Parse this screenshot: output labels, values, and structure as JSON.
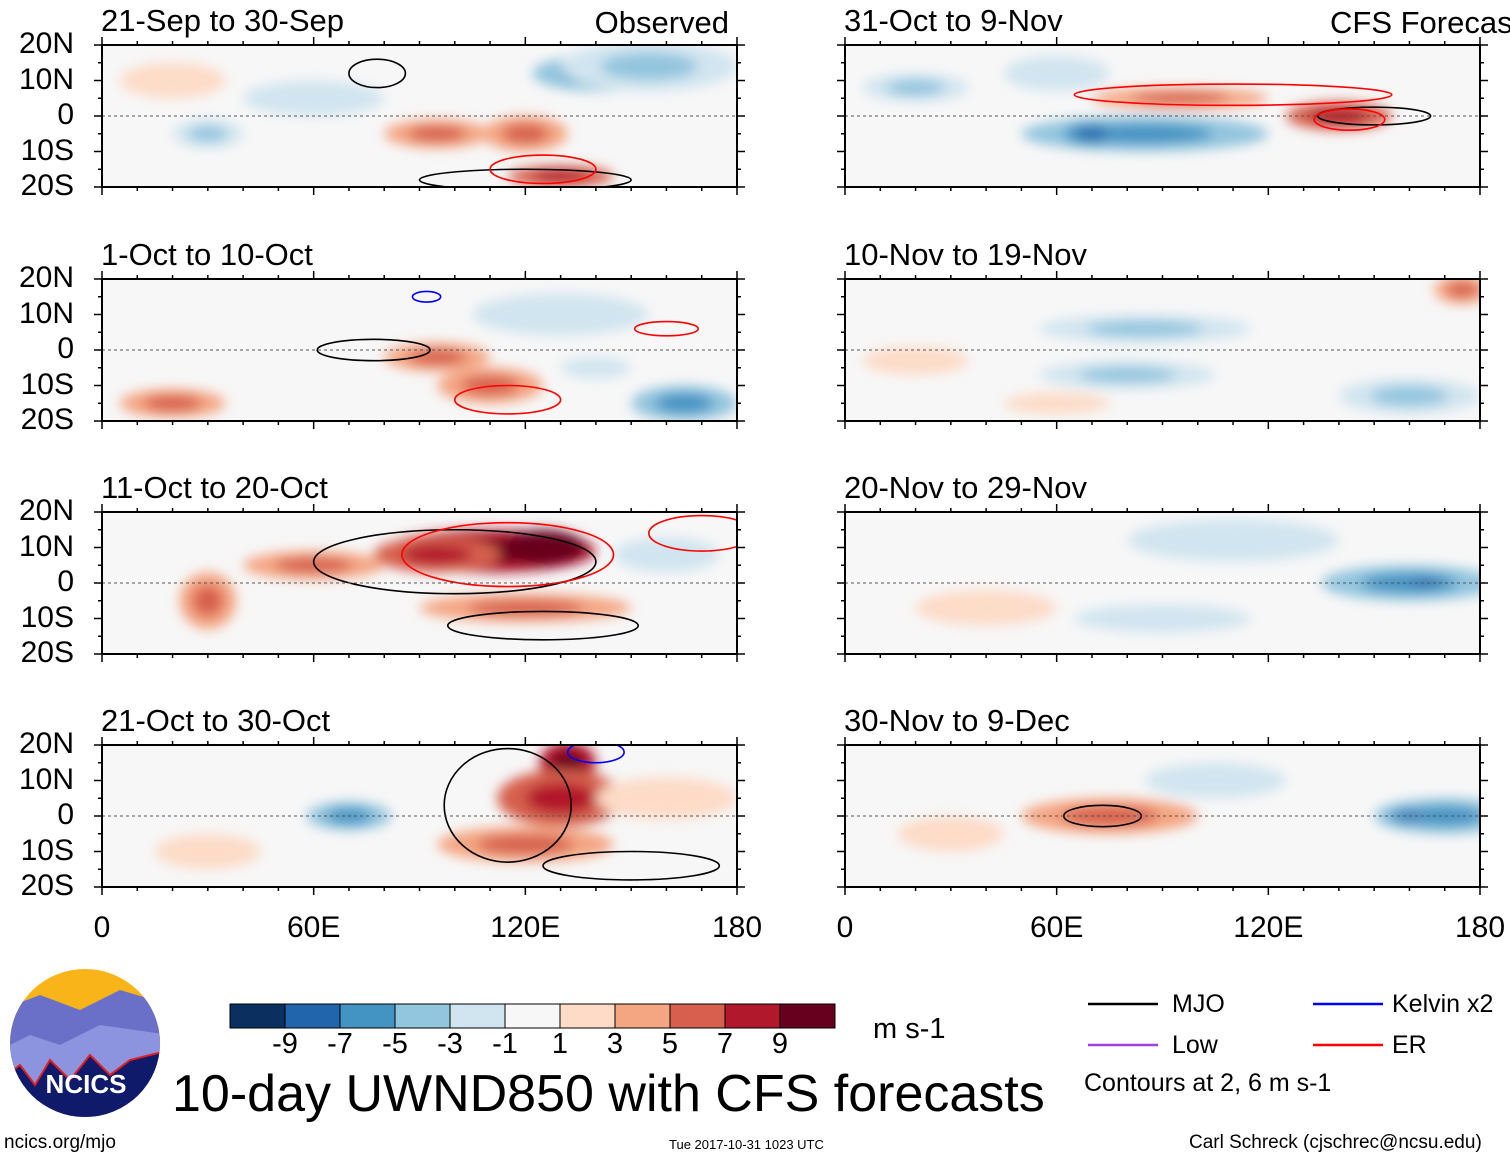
{
  "chart_data": {
    "type": "heatmap",
    "title": "10-day UWND850 with CFS forecasts",
    "variable_units": "m s-1",
    "xlim": [
      0,
      180
    ],
    "ylim": [
      -20,
      20
    ],
    "x_ticks": [
      "0",
      "60E",
      "120E",
      "180"
    ],
    "x_tick_values": [
      0,
      60,
      120,
      180
    ],
    "y_ticks": [
      "20N",
      "10N",
      "0",
      "10S",
      "20S"
    ],
    "y_tick_values": [
      20,
      10,
      0,
      -10,
      -20
    ],
    "colorbar": {
      "labels": [
        "-9",
        "-7",
        "-5",
        "-3",
        "-1",
        "1",
        "3",
        "5",
        "7",
        "9"
      ],
      "colors": [
        "#0b3060",
        "#2166ac",
        "#4393c3",
        "#92c5de",
        "#d1e5f0",
        "#f7f7f7",
        "#fddbc7",
        "#f4a582",
        "#d6604d",
        "#b2182b",
        "#67001f"
      ],
      "units": "m s-1"
    },
    "legend": {
      "items": [
        {
          "label": "MJO",
          "color": "#000000"
        },
        {
          "label": "Kelvin x2",
          "color": "#0000ff"
        },
        {
          "label": "Low",
          "color": "#a040e0"
        },
        {
          "label": "ER",
          "color": "#ff0000"
        }
      ],
      "note": "Contours at 2, 6 m s-1"
    },
    "panels": [
      {
        "title": "21-Sep to 30-Sep",
        "tag": "Observed",
        "blobs": [
          [
            140,
            12,
            18,
            5,
            -5
          ],
          [
            155,
            14,
            25,
            7,
            -3
          ],
          [
            95,
            -5,
            15,
            4,
            3
          ],
          [
            120,
            -5,
            12,
            5,
            4
          ],
          [
            130,
            -17,
            15,
            3,
            5
          ],
          [
            30,
            -5,
            10,
            4,
            -3
          ],
          [
            60,
            5,
            20,
            5,
            -2
          ],
          [
            20,
            10,
            15,
            5,
            2
          ]
        ],
        "contours": [
          {
            "type": "MJO",
            "lon": [
              78,
              8
            ],
            "lat": [
              12,
              4
            ]
          },
          {
            "type": "MJO",
            "lon": [
              120,
              30
            ],
            "lat": [
              -18,
              3
            ]
          },
          {
            "type": "ER",
            "lon": [
              125,
              15
            ],
            "lat": [
              -15,
              4
            ]
          }
        ]
      },
      {
        "title": "1-Oct to 10-Oct",
        "tag": "",
        "blobs": [
          [
            95,
            -2,
            15,
            4,
            4
          ],
          [
            110,
            -10,
            15,
            5,
            4
          ],
          [
            165,
            -15,
            15,
            5,
            -5
          ],
          [
            130,
            10,
            25,
            6,
            -2
          ],
          [
            20,
            -15,
            15,
            4,
            3
          ],
          [
            140,
            -5,
            10,
            3,
            -2
          ]
        ],
        "contours": [
          {
            "type": "MJO",
            "lon": [
              77,
              16
            ],
            "lat": [
              0,
              3
            ]
          },
          {
            "type": "ER",
            "lon": [
              115,
              15
            ],
            "lat": [
              -14,
              4
            ]
          },
          {
            "type": "ER",
            "lon": [
              160,
              9
            ],
            "lat": [
              6,
              2
            ]
          },
          {
            "type": "Kelvin x2",
            "lon": [
              92,
              4
            ],
            "lat": [
              15,
              1.5
            ]
          }
        ]
      },
      {
        "title": "11-Oct to 20-Oct",
        "tag": "",
        "blobs": [
          [
            110,
            9,
            30,
            6,
            7
          ],
          [
            125,
            10,
            12,
            5,
            9
          ],
          [
            95,
            8,
            18,
            5,
            6
          ],
          [
            60,
            5,
            20,
            4,
            3
          ],
          [
            120,
            -7,
            30,
            4,
            3
          ],
          [
            160,
            8,
            15,
            5,
            -2
          ],
          [
            30,
            -5,
            8,
            8,
            3
          ]
        ],
        "contours": [
          {
            "type": "MJO",
            "lon": [
              100,
              40
            ],
            "lat": [
              6,
              9
            ]
          },
          {
            "type": "MJO",
            "lon": [
              125,
              27
            ],
            "lat": [
              -12,
              4
            ]
          },
          {
            "type": "ER",
            "lon": [
              115,
              30
            ],
            "lat": [
              8,
              9
            ]
          },
          {
            "type": "ER",
            "lon": [
              170,
              15
            ],
            "lat": [
              14,
              5
            ]
          }
        ]
      },
      {
        "title": "21-Oct to 30-Oct",
        "tag": "",
        "blobs": [
          [
            132,
            15,
            8,
            6,
            8
          ],
          [
            130,
            5,
            18,
            8,
            5
          ],
          [
            120,
            -8,
            25,
            5,
            3
          ],
          [
            70,
            0,
            12,
            4,
            -5
          ],
          [
            160,
            5,
            20,
            6,
            2
          ],
          [
            30,
            -10,
            15,
            5,
            2
          ]
        ],
        "contours": [
          {
            "type": "MJO",
            "lon": [
              115,
              18
            ],
            "lat": [
              3,
              16
            ]
          },
          {
            "type": "MJO",
            "lon": [
              150,
              25
            ],
            "lat": [
              -14,
              4
            ]
          },
          {
            "type": "Kelvin x2",
            "lon": [
              140,
              8
            ],
            "lat": [
              18,
              3
            ]
          }
        ]
      },
      {
        "title": "31-Oct to 9-Nov",
        "tag": "CFS Forecast",
        "blobs": [
          [
            85,
            -5,
            35,
            5,
            -4
          ],
          [
            70,
            -5,
            8,
            3,
            -6
          ],
          [
            140,
            0,
            15,
            4,
            6
          ],
          [
            95,
            5,
            25,
            3,
            3
          ],
          [
            20,
            8,
            15,
            4,
            -3
          ],
          [
            60,
            12,
            15,
            5,
            -2
          ]
        ],
        "contours": [
          {
            "type": "MJO",
            "lon": [
              150,
              16
            ],
            "lat": [
              0,
              2.5
            ]
          },
          {
            "type": "ER",
            "lon": [
              110,
              45
            ],
            "lat": [
              6,
              3
            ]
          },
          {
            "type": "ER",
            "lon": [
              143,
              10
            ],
            "lat": [
              -1,
              3
            ]
          }
        ]
      },
      {
        "title": "10-Nov to 19-Nov",
        "tag": "",
        "blobs": [
          [
            85,
            6,
            30,
            4,
            -3
          ],
          [
            80,
            -7,
            25,
            4,
            -3
          ],
          [
            160,
            -13,
            20,
            5,
            -3
          ],
          [
            175,
            17,
            8,
            4,
            3
          ],
          [
            20,
            -3,
            15,
            4,
            2
          ],
          [
            60,
            -15,
            15,
            3,
            2
          ]
        ],
        "contours": []
      },
      {
        "title": "20-Nov to 29-Nov",
        "tag": "",
        "blobs": [
          [
            160,
            0,
            25,
            5,
            -4
          ],
          [
            165,
            0,
            8,
            2,
            -6
          ],
          [
            110,
            12,
            30,
            6,
            -2
          ],
          [
            40,
            -7,
            20,
            5,
            2
          ],
          [
            90,
            -10,
            25,
            4,
            -2
          ]
        ],
        "contours": []
      },
      {
        "title": "30-Nov to 9-Dec",
        "tag": "",
        "blobs": [
          [
            75,
            0,
            25,
            5,
            4
          ],
          [
            170,
            0,
            20,
            5,
            -4
          ],
          [
            160,
            0,
            6,
            2,
            -6
          ],
          [
            30,
            -5,
            15,
            5,
            2
          ],
          [
            105,
            10,
            20,
            5,
            -2
          ]
        ],
        "contours": [
          {
            "type": "MJO",
            "lon": [
              73,
              11
            ],
            "lat": [
              0,
              3
            ]
          }
        ]
      }
    ]
  },
  "footer": {
    "logo_text": "NCICS",
    "url": "ncics.org/mjo",
    "timestamp": "Tue 2017-10-31 1023 UTC",
    "credit": "Carl Schreck (cjschrec@ncsu.edu)"
  }
}
